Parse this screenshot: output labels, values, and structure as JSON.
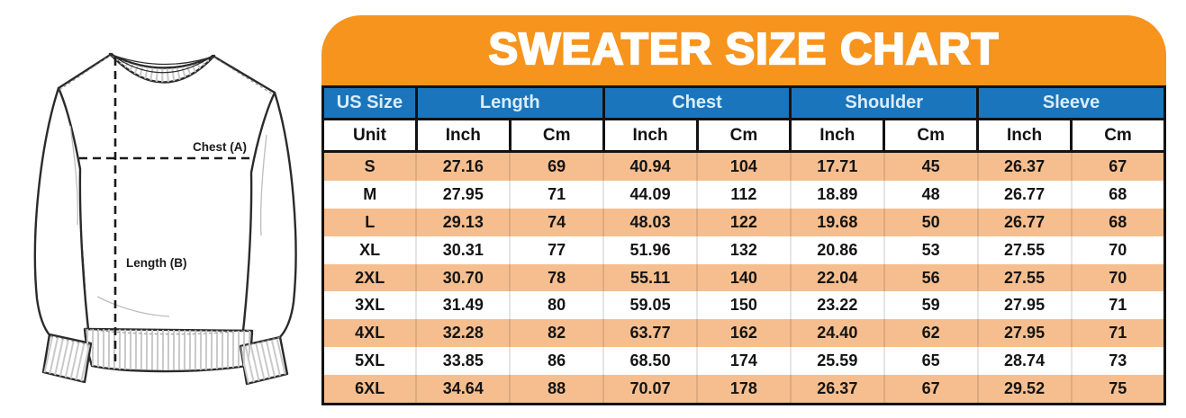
{
  "title": "SWEATER SIZE CHART",
  "colors": {
    "banner_orange": "#F7941E",
    "header_blue": "#1B75BC",
    "header_text_light_blue": "#D9EDFA",
    "stripe_peach": "#F6BE8E",
    "row_white": "#FFFFFF",
    "border_black": "#121212",
    "sketch_line": "#2b2b2b",
    "rib_gray": "#c9c9c9"
  },
  "diagram": {
    "chest_label": "Chest (A)",
    "length_label": "Length (B)"
  },
  "table": {
    "group_headers": [
      {
        "label": "US Size"
      },
      {
        "label": "Length"
      },
      {
        "label": "Chest"
      },
      {
        "label": "Shoulder"
      },
      {
        "label": "Sleeve"
      }
    ],
    "unit_row": [
      "Unit",
      "Inch",
      "Cm",
      "Inch",
      "Cm",
      "Inch",
      "Cm",
      "Inch",
      "Cm"
    ],
    "rows": [
      [
        "S",
        "27.16",
        "69",
        "40.94",
        "104",
        "17.71",
        "45",
        "26.37",
        "67"
      ],
      [
        "M",
        "27.95",
        "71",
        "44.09",
        "112",
        "18.89",
        "48",
        "26.77",
        "68"
      ],
      [
        "L",
        "29.13",
        "74",
        "48.03",
        "122",
        "19.68",
        "50",
        "26.77",
        "68"
      ],
      [
        "XL",
        "30.31",
        "77",
        "51.96",
        "132",
        "20.86",
        "53",
        "27.55",
        "70"
      ],
      [
        "2XL",
        "30.70",
        "78",
        "55.11",
        "140",
        "22.04",
        "56",
        "27.55",
        "70"
      ],
      [
        "3XL",
        "31.49",
        "80",
        "59.05",
        "150",
        "23.22",
        "59",
        "27.95",
        "71"
      ],
      [
        "4XL",
        "32.28",
        "82",
        "63.77",
        "162",
        "24.40",
        "62",
        "27.95",
        "71"
      ],
      [
        "5XL",
        "33.85",
        "86",
        "68.50",
        "174",
        "25.59",
        "65",
        "28.74",
        "73"
      ],
      [
        "6XL",
        "34.64",
        "88",
        "70.07",
        "178",
        "26.37",
        "67",
        "29.52",
        "75"
      ]
    ]
  },
  "chart_data": {
    "type": "table",
    "title": "SWEATER SIZE CHART",
    "columns": [
      "US Size",
      "Length Inch",
      "Length Cm",
      "Chest Inch",
      "Chest Cm",
      "Shoulder Inch",
      "Shoulder Cm",
      "Sleeve Inch",
      "Sleeve Cm"
    ],
    "rows": [
      [
        "S",
        27.16,
        69,
        40.94,
        104,
        17.71,
        45,
        26.37,
        67
      ],
      [
        "M",
        27.95,
        71,
        44.09,
        112,
        18.89,
        48,
        26.77,
        68
      ],
      [
        "L",
        29.13,
        74,
        48.03,
        122,
        19.68,
        50,
        26.77,
        68
      ],
      [
        "XL",
        30.31,
        77,
        51.96,
        132,
        20.86,
        53,
        27.55,
        70
      ],
      [
        "2XL",
        30.7,
        78,
        55.11,
        140,
        22.04,
        56,
        27.55,
        70
      ],
      [
        "3XL",
        31.49,
        80,
        59.05,
        150,
        23.22,
        59,
        27.95,
        71
      ],
      [
        "4XL",
        32.28,
        82,
        63.77,
        162,
        24.4,
        62,
        27.95,
        71
      ],
      [
        "5XL",
        33.85,
        86,
        68.5,
        174,
        25.59,
        65,
        28.74,
        73
      ],
      [
        "6XL",
        34.64,
        88,
        70.07,
        178,
        26.37,
        67,
        29.52,
        75
      ]
    ],
    "notes": "Measurement guide diagram labels: Chest (A) horizontal, Length (B) vertical"
  }
}
